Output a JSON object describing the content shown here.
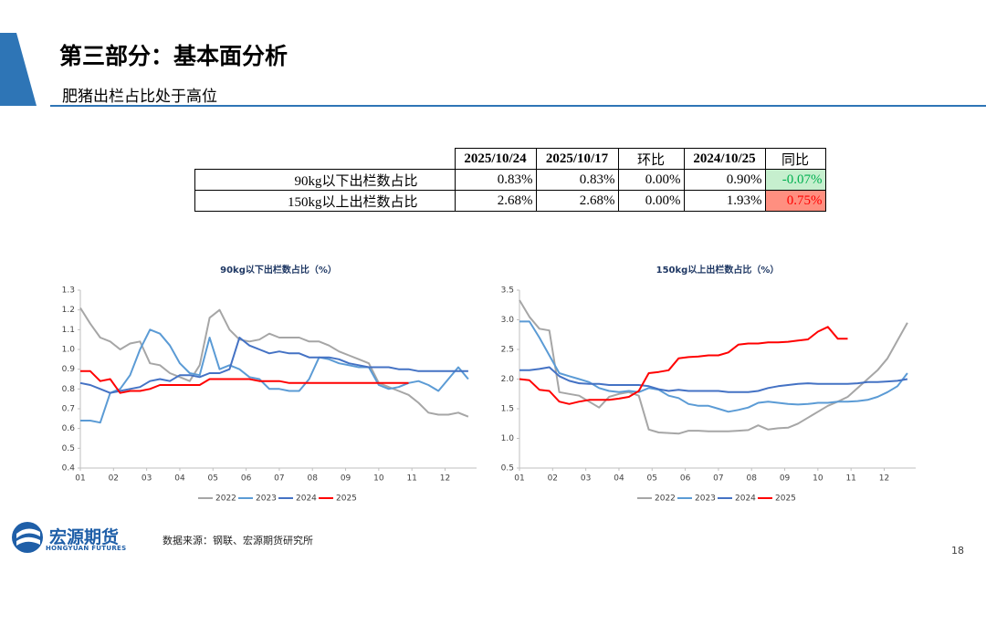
{
  "header": {
    "title": "第三部分：基本面分析",
    "subtitle": "肥猪出栏占比处于高位"
  },
  "table": {
    "columns": [
      "2025/10/24",
      "2025/10/17",
      "环比",
      "2024/10/25",
      "同比"
    ],
    "rows": [
      {
        "label": "90kg以下出栏数占比",
        "cells": [
          "0.83%",
          "0.83%",
          "0.00%",
          "0.90%",
          "-0.07%"
        ]
      },
      {
        "label": "150kg以上出栏数占比",
        "cells": [
          "2.68%",
          "2.68%",
          "0.00%",
          "1.93%",
          "0.75%"
        ]
      }
    ]
  },
  "chart_data": [
    {
      "type": "line",
      "title": "90kg以下出栏数占比（%）",
      "x": [
        1.0,
        1.3,
        1.6,
        1.9,
        2.2,
        2.5,
        2.8,
        3.1,
        3.4,
        3.7,
        4.0,
        4.3,
        4.6,
        4.9,
        5.2,
        5.5,
        5.8,
        6.1,
        6.4,
        6.7,
        7.0,
        7.3,
        7.6,
        7.9,
        8.2,
        8.5,
        8.8,
        9.1,
        9.4,
        9.7,
        10.0,
        10.3,
        10.6,
        10.9,
        11.2,
        11.5,
        11.8,
        12.1,
        12.4,
        12.7
      ],
      "xlim": [
        1,
        12.95
      ],
      "xticks": [
        {
          "value": 1,
          "label": "01"
        },
        {
          "value": 2,
          "label": "02"
        },
        {
          "value": 3,
          "label": "03"
        },
        {
          "value": 4,
          "label": "04"
        },
        {
          "value": 5,
          "label": "05"
        },
        {
          "value": 6,
          "label": "06"
        },
        {
          "value": 7,
          "label": "07"
        },
        {
          "value": 8,
          "label": "08"
        },
        {
          "value": 9,
          "label": "09"
        },
        {
          "value": 10,
          "label": "10"
        },
        {
          "value": 11,
          "label": "11"
        },
        {
          "value": 12,
          "label": "12"
        }
      ],
      "ylim": [
        0.4,
        1.3
      ],
      "yticks": [
        0.4,
        0.5,
        0.6,
        0.7,
        0.8,
        0.9,
        {
          "value": 1,
          "label": "1.0"
        },
        1.1,
        1.2,
        1.3
      ],
      "series": [
        {
          "name": "2022",
          "color": "#a6a6a6",
          "values": [
            1.21,
            1.13,
            1.06,
            1.04,
            1.0,
            1.03,
            1.04,
            0.93,
            0.92,
            0.88,
            0.86,
            0.84,
            0.92,
            1.16,
            1.2,
            1.1,
            1.05,
            1.04,
            1.05,
            1.08,
            1.06,
            1.06,
            1.06,
            1.04,
            1.04,
            1.02,
            0.99,
            0.97,
            0.95,
            0.93,
            0.83,
            0.81,
            0.79,
            0.77,
            0.73,
            0.68,
            0.67,
            0.67,
            0.68,
            0.66
          ]
        },
        {
          "name": "2023",
          "color": "#5b9bd5",
          "values": [
            0.64,
            0.64,
            0.63,
            0.78,
            0.8,
            0.87,
            1.0,
            1.1,
            1.08,
            1.02,
            0.93,
            0.88,
            0.87,
            1.06,
            0.9,
            0.92,
            0.9,
            0.86,
            0.85,
            0.8,
            0.8,
            0.79,
            0.79,
            0.85,
            0.96,
            0.95,
            0.93,
            0.92,
            0.91,
            0.91,
            0.82,
            0.8,
            0.81,
            0.83,
            0.84,
            0.82,
            0.79,
            0.85,
            0.91,
            0.85
          ]
        },
        {
          "name": "2024",
          "color": "#4472c4",
          "values": [
            0.83,
            0.82,
            0.8,
            0.78,
            0.79,
            0.8,
            0.81,
            0.84,
            0.85,
            0.84,
            0.87,
            0.87,
            0.86,
            0.88,
            0.88,
            0.9,
            1.06,
            1.02,
            1.0,
            0.98,
            0.99,
            0.98,
            0.98,
            0.96,
            0.96,
            0.96,
            0.95,
            0.93,
            0.92,
            0.91,
            0.91,
            0.91,
            0.9,
            0.9,
            0.89,
            0.89,
            0.89,
            0.89,
            0.89,
            0.89
          ]
        },
        {
          "name": "2025",
          "color": "#ff0000",
          "values": [
            0.89,
            0.89,
            0.84,
            0.85,
            0.78,
            0.79,
            0.79,
            0.8,
            0.82,
            0.82,
            0.82,
            0.82,
            0.82,
            0.85,
            0.85,
            0.85,
            0.85,
            0.85,
            0.84,
            0.84,
            0.84,
            0.83,
            0.83,
            0.83,
            0.83,
            0.83,
            0.83,
            0.83,
            0.83,
            0.83,
            0.83,
            0.83,
            0.83,
            0.83,
            null,
            null,
            null,
            null,
            null,
            null
          ]
        }
      ]
    },
    {
      "type": "line",
      "title": "150kg以上出栏数占比（%）",
      "x": [
        1.0,
        1.3,
        1.6,
        1.9,
        2.2,
        2.5,
        2.8,
        3.1,
        3.4,
        3.7,
        4.0,
        4.3,
        4.6,
        4.9,
        5.2,
        5.5,
        5.8,
        6.1,
        6.4,
        6.7,
        7.0,
        7.3,
        7.6,
        7.9,
        8.2,
        8.5,
        8.8,
        9.1,
        9.4,
        9.7,
        10.0,
        10.3,
        10.6,
        10.9,
        11.2,
        11.5,
        11.8,
        12.1,
        12.4,
        12.7
      ],
      "xlim": [
        1,
        12.95
      ],
      "xticks": [
        {
          "value": 1,
          "label": "01"
        },
        {
          "value": 2,
          "label": "02"
        },
        {
          "value": 3,
          "label": "03"
        },
        {
          "value": 4,
          "label": "04"
        },
        {
          "value": 5,
          "label": "05"
        },
        {
          "value": 6,
          "label": "06"
        },
        {
          "value": 7,
          "label": "07"
        },
        {
          "value": 8,
          "label": "08"
        },
        {
          "value": 9,
          "label": "09"
        },
        {
          "value": 10,
          "label": "10"
        },
        {
          "value": 11,
          "label": "11"
        },
        {
          "value": 12,
          "label": "12"
        }
      ],
      "ylim": [
        0.5,
        3.5
      ],
      "yticks": [
        0.5,
        {
          "value": 1,
          "label": "1.0"
        },
        1.5,
        {
          "value": 2,
          "label": "2.0"
        },
        2.5,
        {
          "value": 3,
          "label": "3.0"
        },
        3.5
      ],
      "series": [
        {
          "name": "2022",
          "color": "#a6a6a6",
          "values": [
            3.33,
            3.05,
            2.85,
            2.82,
            1.78,
            1.75,
            1.72,
            1.62,
            1.52,
            1.7,
            1.75,
            1.78,
            1.72,
            1.15,
            1.1,
            1.09,
            1.08,
            1.13,
            1.13,
            1.12,
            1.12,
            1.12,
            1.13,
            1.14,
            1.22,
            1.15,
            1.17,
            1.18,
            1.25,
            1.35,
            1.45,
            1.55,
            1.62,
            1.7,
            1.85,
            2.0,
            2.15,
            2.35,
            2.65,
            2.95
          ]
        },
        {
          "name": "2023",
          "color": "#5b9bd5",
          "values": [
            2.97,
            2.97,
            2.7,
            2.4,
            2.1,
            2.05,
            2.0,
            1.95,
            1.85,
            1.8,
            1.78,
            1.8,
            1.78,
            1.85,
            1.82,
            1.72,
            1.68,
            1.58,
            1.55,
            1.55,
            1.5,
            1.45,
            1.48,
            1.52,
            1.6,
            1.62,
            1.6,
            1.58,
            1.57,
            1.58,
            1.6,
            1.6,
            1.62,
            1.62,
            1.63,
            1.65,
            1.7,
            1.78,
            1.88,
            2.1
          ]
        },
        {
          "name": "2024",
          "color": "#4472c4",
          "values": [
            2.15,
            2.15,
            2.17,
            2.2,
            2.05,
            1.97,
            1.93,
            1.92,
            1.92,
            1.9,
            1.9,
            1.9,
            1.9,
            1.88,
            1.83,
            1.8,
            1.82,
            1.8,
            1.8,
            1.8,
            1.8,
            1.78,
            1.78,
            1.78,
            1.8,
            1.85,
            1.88,
            1.9,
            1.92,
            1.93,
            1.92,
            1.92,
            1.92,
            1.92,
            1.93,
            1.95,
            1.95,
            1.96,
            1.97,
            2.0
          ]
        },
        {
          "name": "2025",
          "color": "#ff0000",
          "values": [
            2.0,
            1.98,
            1.82,
            1.8,
            1.62,
            1.58,
            1.62,
            1.65,
            1.65,
            1.65,
            1.67,
            1.7,
            1.8,
            2.1,
            2.12,
            2.15,
            2.35,
            2.37,
            2.38,
            2.4,
            2.4,
            2.45,
            2.58,
            2.6,
            2.6,
            2.62,
            2.62,
            2.63,
            2.65,
            2.67,
            2.8,
            2.88,
            2.68,
            2.68,
            null,
            null,
            null,
            null,
            null,
            null
          ]
        }
      ]
    }
  ],
  "footer": {
    "source": "数据来源：钢联、宏源期货研究所",
    "page": "18"
  },
  "logo": {
    "name": "宏源期货",
    "english": "HONGYUAN FUTURES"
  }
}
